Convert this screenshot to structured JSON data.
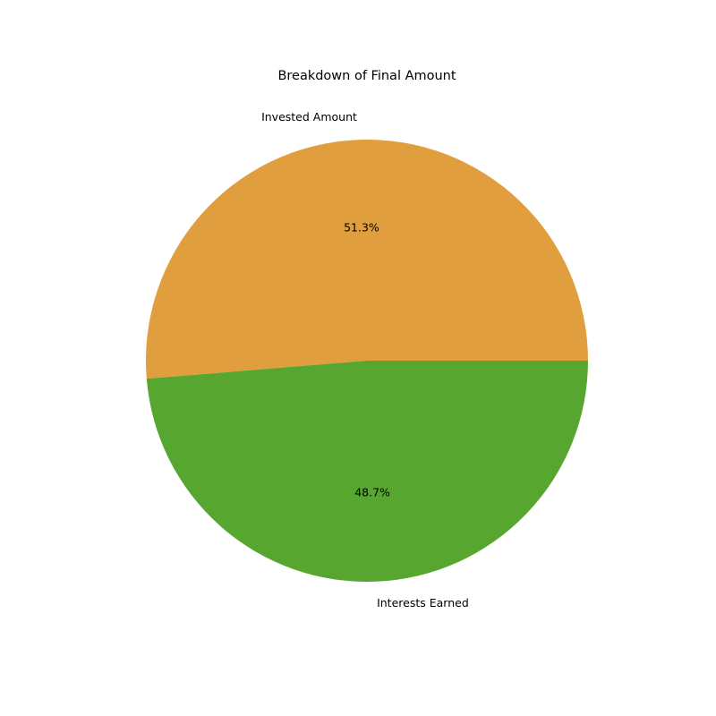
{
  "chart_data": {
    "type": "pie",
    "title": "Breakdown of Final Amount",
    "slices": [
      {
        "label": "Invested Amount",
        "value": 51.3,
        "pct_text": "51.3%",
        "color": "#e09e3e"
      },
      {
        "label": "Interests Earned",
        "value": 48.7,
        "pct_text": "48.7%",
        "color": "#56a630"
      }
    ],
    "start_angle": 0,
    "direction": "counterclockwise",
    "legend": "none"
  }
}
